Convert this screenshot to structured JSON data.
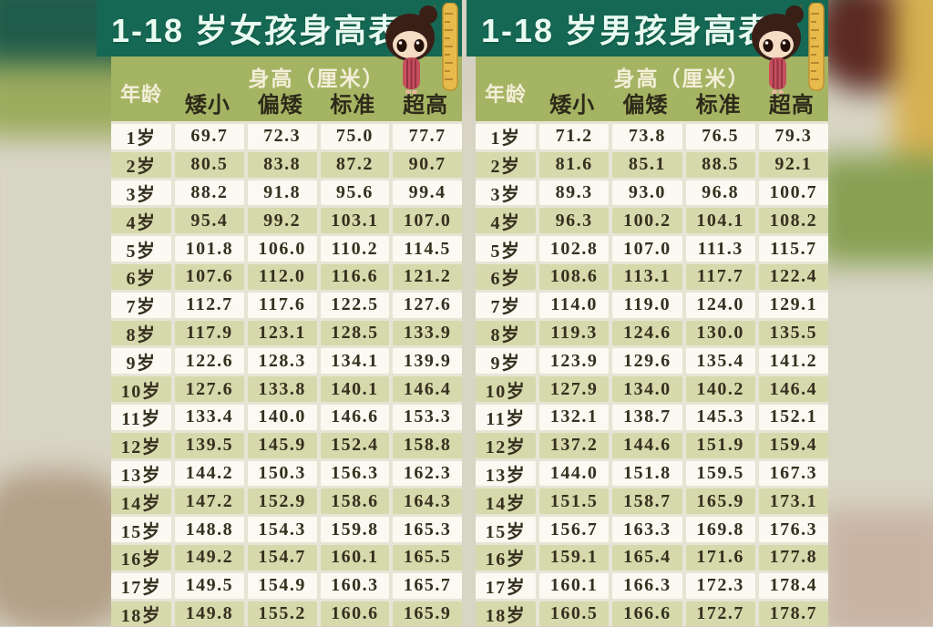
{
  "colors": {
    "title_band": "#156854",
    "header_band": "#a5b463",
    "row_light": "#fbfaf2",
    "row_olive": "#d6d9ab",
    "ruler_yellow": "#e7bb4b",
    "dress_red": "#c64f5e"
  },
  "chart_data": [
    {
      "type": "table",
      "title": "1-18 岁女孩身高表",
      "header": {
        "age_label": "年龄",
        "group_label": "身高（厘米）",
        "columns": [
          "矮小",
          "偏矮",
          "标准",
          "超高"
        ]
      },
      "rows": [
        {
          "age": "1岁",
          "values": [
            "69.7",
            "72.3",
            "75.0",
            "77.7"
          ]
        },
        {
          "age": "2岁",
          "values": [
            "80.5",
            "83.8",
            "87.2",
            "90.7"
          ]
        },
        {
          "age": "3岁",
          "values": [
            "88.2",
            "91.8",
            "95.6",
            "99.4"
          ]
        },
        {
          "age": "4岁",
          "values": [
            "95.4",
            "99.2",
            "103.1",
            "107.0"
          ]
        },
        {
          "age": "5岁",
          "values": [
            "101.8",
            "106.0",
            "110.2",
            "114.5"
          ]
        },
        {
          "age": "6岁",
          "values": [
            "107.6",
            "112.0",
            "116.6",
            "121.2"
          ]
        },
        {
          "age": "7岁",
          "values": [
            "112.7",
            "117.6",
            "122.5",
            "127.6"
          ]
        },
        {
          "age": "8岁",
          "values": [
            "117.9",
            "123.1",
            "128.5",
            "133.9"
          ]
        },
        {
          "age": "9岁",
          "values": [
            "122.6",
            "128.3",
            "134.1",
            "139.9"
          ]
        },
        {
          "age": "10岁",
          "values": [
            "127.6",
            "133.8",
            "140.1",
            "146.4"
          ]
        },
        {
          "age": "11岁",
          "values": [
            "133.4",
            "140.0",
            "146.6",
            "153.3"
          ]
        },
        {
          "age": "12岁",
          "values": [
            "139.5",
            "145.9",
            "152.4",
            "158.8"
          ]
        },
        {
          "age": "13岁",
          "values": [
            "144.2",
            "150.3",
            "156.3",
            "162.3"
          ]
        },
        {
          "age": "14岁",
          "values": [
            "147.2",
            "152.9",
            "158.6",
            "164.3"
          ]
        },
        {
          "age": "15岁",
          "values": [
            "148.8",
            "154.3",
            "159.8",
            "165.3"
          ]
        },
        {
          "age": "16岁",
          "values": [
            "149.2",
            "154.7",
            "160.1",
            "165.5"
          ]
        },
        {
          "age": "17岁",
          "values": [
            "149.5",
            "154.9",
            "160.3",
            "165.7"
          ]
        },
        {
          "age": "18岁",
          "values": [
            "149.8",
            "155.2",
            "160.6",
            "165.9"
          ]
        }
      ]
    },
    {
      "type": "table",
      "title": "1-18 岁男孩身高表",
      "header": {
        "age_label": "年龄",
        "group_label": "身高（厘米）",
        "columns": [
          "矮小",
          "偏矮",
          "标准",
          "超高"
        ]
      },
      "rows": [
        {
          "age": "1岁",
          "values": [
            "71.2",
            "73.8",
            "76.5",
            "79.3"
          ]
        },
        {
          "age": "2岁",
          "values": [
            "81.6",
            "85.1",
            "88.5",
            "92.1"
          ]
        },
        {
          "age": "3岁",
          "values": [
            "89.3",
            "93.0",
            "96.8",
            "100.7"
          ]
        },
        {
          "age": "4岁",
          "values": [
            "96.3",
            "100.2",
            "104.1",
            "108.2"
          ]
        },
        {
          "age": "5岁",
          "values": [
            "102.8",
            "107.0",
            "111.3",
            "115.7"
          ]
        },
        {
          "age": "6岁",
          "values": [
            "108.6",
            "113.1",
            "117.7",
            "122.4"
          ]
        },
        {
          "age": "7岁",
          "values": [
            "114.0",
            "119.0",
            "124.0",
            "129.1"
          ]
        },
        {
          "age": "8岁",
          "values": [
            "119.3",
            "124.6",
            "130.0",
            "135.5"
          ]
        },
        {
          "age": "9岁",
          "values": [
            "123.9",
            "129.6",
            "135.4",
            "141.2"
          ]
        },
        {
          "age": "10岁",
          "values": [
            "127.9",
            "134.0",
            "140.2",
            "146.4"
          ]
        },
        {
          "age": "11岁",
          "values": [
            "132.1",
            "138.7",
            "145.3",
            "152.1"
          ]
        },
        {
          "age": "12岁",
          "values": [
            "137.2",
            "144.6",
            "151.9",
            "159.4"
          ]
        },
        {
          "age": "13岁",
          "values": [
            "144.0",
            "151.8",
            "159.5",
            "167.3"
          ]
        },
        {
          "age": "14岁",
          "values": [
            "151.5",
            "158.7",
            "165.9",
            "173.1"
          ]
        },
        {
          "age": "15岁",
          "values": [
            "156.7",
            "163.3",
            "169.8",
            "176.3"
          ]
        },
        {
          "age": "16岁",
          "values": [
            "159.1",
            "165.4",
            "171.6",
            "177.8"
          ]
        },
        {
          "age": "17岁",
          "values": [
            "160.1",
            "166.3",
            "172.3",
            "178.4"
          ]
        },
        {
          "age": "18岁",
          "values": [
            "160.5",
            "166.6",
            "172.7",
            "178.7"
          ]
        }
      ]
    }
  ]
}
